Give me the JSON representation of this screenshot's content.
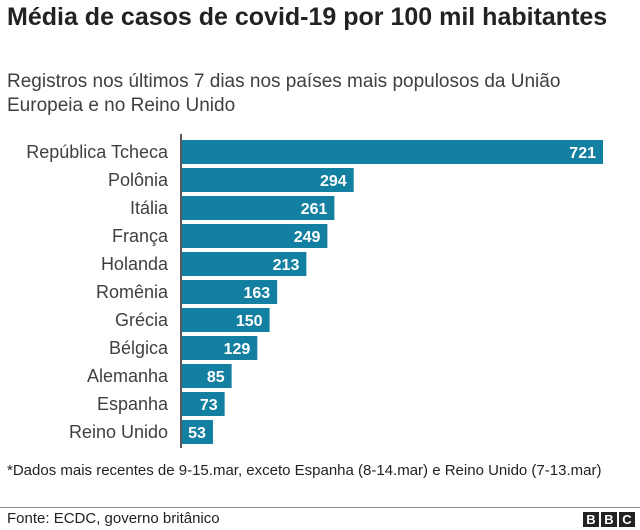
{
  "chart_data": {
    "type": "bar",
    "orientation": "horizontal",
    "title": "Média de casos de covid-19 por 100 mil habitantes",
    "subtitle": "Registros nos últimos 7 dias nos países mais populosos da União Europeia e no Reino Unido",
    "categories": [
      "República Tcheca",
      "Polônia",
      "Itália",
      "França",
      "Holanda",
      "Romênia",
      "Grécia",
      "Bélgica",
      "Alemanha",
      "Espanha",
      "Reino Unido"
    ],
    "values": [
      721,
      294,
      261,
      249,
      213,
      163,
      150,
      129,
      85,
      73,
      53
    ],
    "xlim": [
      0,
      721
    ],
    "grid": false,
    "bar_color": "#1380A1",
    "data_labels": true
  },
  "footnote": "*Dados mais recentes de 9-15.mar, exceto Espanha (8-14.mar) e Reino Unido (7-13.mar)",
  "source": "Fonte: ECDC, governo britânico",
  "logo": [
    "B",
    "B",
    "C"
  ]
}
